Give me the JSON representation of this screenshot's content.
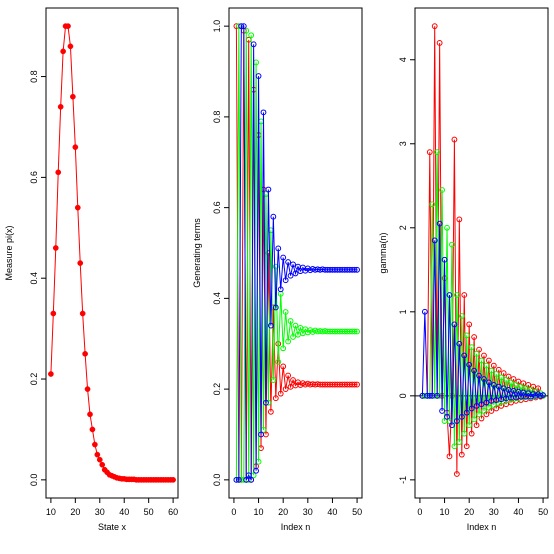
{
  "chart_data": [
    {
      "type": "line",
      "xlabel": "State x",
      "ylabel": "Measure pi(x)",
      "xlim": [
        10,
        60
      ],
      "ylim": [
        0,
        0.9
      ],
      "xticks": [
        10,
        20,
        30,
        40,
        50,
        60
      ],
      "yticks": [
        0.0,
        0.2,
        0.4,
        0.6,
        0.8
      ],
      "grid": false,
      "series": [
        {
          "color": "#ff0000",
          "x": [
            10,
            11,
            12,
            13,
            14,
            15,
            16,
            17,
            18,
            19,
            20,
            21,
            22,
            23,
            24,
            25,
            26,
            27,
            28,
            29,
            30,
            31,
            32,
            33,
            34,
            35,
            36,
            37,
            38,
            39,
            40,
            41,
            42,
            43,
            44,
            45,
            46,
            47,
            48,
            49,
            50,
            51,
            52,
            53,
            54,
            55,
            56,
            57,
            58,
            59,
            60
          ],
          "y": [
            0.21,
            0.33,
            0.46,
            0.61,
            0.74,
            0.85,
            0.9,
            0.9,
            0.86,
            0.76,
            0.66,
            0.54,
            0.43,
            0.33,
            0.25,
            0.18,
            0.13,
            0.1,
            0.07,
            0.05,
            0.04,
            0.03,
            0.02,
            0.015,
            0.01,
            0.008,
            0.006,
            0.004,
            0.003,
            0.002,
            0.002,
            0.001,
            0.001,
            0.001,
            0.001,
            0.0,
            0.0,
            0.0,
            0.0,
            0.0,
            0.0,
            0.0,
            0.0,
            0.0,
            0.0,
            0.0,
            0.0,
            0.0,
            0.0,
            0.0,
            0.0
          ]
        }
      ]
    },
    {
      "type": "line",
      "xlabel": "Index n",
      "ylabel": "Generating terms",
      "xlim": [
        0,
        50
      ],
      "ylim": [
        0,
        1
      ],
      "xticks": [
        0,
        10,
        20,
        30,
        40,
        50
      ],
      "yticks": [
        0.0,
        0.2,
        0.4,
        0.6,
        0.8,
        1.0
      ],
      "grid": false,
      "series": [
        {
          "color": "#ff0000",
          "x": [
            1,
            2,
            3,
            4,
            5,
            6,
            7,
            8,
            9,
            10,
            11,
            12,
            13,
            14,
            15,
            16,
            17,
            18,
            19,
            20,
            21,
            22,
            23,
            24,
            25,
            26,
            27,
            28,
            29,
            30,
            31,
            32,
            33,
            34,
            35,
            36,
            37,
            38,
            39,
            40,
            41,
            42,
            43,
            44,
            45,
            46,
            47,
            48,
            49,
            50
          ],
          "y": [
            1.0,
            0.0,
            0.0,
            0.99,
            0.0,
            0.97,
            0.0,
            0.86,
            0.03,
            0.76,
            0.07,
            0.64,
            0.1,
            0.5,
            0.15,
            0.38,
            0.18,
            0.3,
            0.19,
            0.25,
            0.2,
            0.23,
            0.205,
            0.22,
            0.208,
            0.215,
            0.209,
            0.213,
            0.21,
            0.212,
            0.21,
            0.211,
            0.21,
            0.211,
            0.21,
            0.21,
            0.21,
            0.21,
            0.21,
            0.21,
            0.21,
            0.21,
            0.21,
            0.21,
            0.21,
            0.21,
            0.21,
            0.21,
            0.21,
            0.21
          ]
        },
        {
          "color": "#00ff00",
          "x": [
            1,
            2,
            3,
            4,
            5,
            6,
            7,
            8,
            9,
            10,
            11,
            12,
            13,
            14,
            15,
            16,
            17,
            18,
            19,
            20,
            21,
            22,
            23,
            24,
            25,
            26,
            27,
            28,
            29,
            30,
            31,
            32,
            33,
            34,
            35,
            36,
            37,
            38,
            39,
            40,
            41,
            42,
            43,
            44,
            45,
            46,
            47,
            48,
            49,
            50
          ],
          "y": [
            0.0,
            1.0,
            0.0,
            0.0,
            0.99,
            0.0,
            0.98,
            0.01,
            0.92,
            0.04,
            0.79,
            0.11,
            0.63,
            0.17,
            0.55,
            0.22,
            0.47,
            0.26,
            0.41,
            0.29,
            0.37,
            0.305,
            0.35,
            0.315,
            0.34,
            0.32,
            0.335,
            0.323,
            0.332,
            0.325,
            0.33,
            0.326,
            0.329,
            0.327,
            0.328,
            0.327,
            0.328,
            0.327,
            0.327,
            0.327,
            0.327,
            0.327,
            0.327,
            0.327,
            0.327,
            0.327,
            0.327,
            0.327,
            0.327,
            0.327
          ]
        },
        {
          "color": "#0000ff",
          "x": [
            1,
            2,
            3,
            4,
            5,
            6,
            7,
            8,
            9,
            10,
            11,
            12,
            13,
            14,
            15,
            16,
            17,
            18,
            19,
            20,
            21,
            22,
            23,
            24,
            25,
            26,
            27,
            28,
            29,
            30,
            31,
            32,
            33,
            34,
            35,
            36,
            37,
            38,
            39,
            40,
            41,
            42,
            43,
            44,
            45,
            46,
            47,
            48,
            49,
            50
          ],
          "y": [
            0.0,
            0.0,
            1.0,
            1.0,
            0.0,
            0.01,
            0.0,
            0.96,
            0.02,
            0.89,
            0.1,
            0.81,
            0.17,
            0.64,
            0.34,
            0.58,
            0.38,
            0.51,
            0.42,
            0.49,
            0.44,
            0.48,
            0.45,
            0.475,
            0.455,
            0.47,
            0.46,
            0.468,
            0.461,
            0.466,
            0.462,
            0.465,
            0.463,
            0.464,
            0.463,
            0.464,
            0.463,
            0.463,
            0.463,
            0.463,
            0.463,
            0.463,
            0.463,
            0.463,
            0.463,
            0.463,
            0.463,
            0.463,
            0.463,
            0.463
          ]
        }
      ]
    },
    {
      "type": "line",
      "xlabel": "Index n",
      "ylabel": "gamma(n)",
      "xlim": [
        0,
        50
      ],
      "ylim": [
        -1,
        4.4
      ],
      "xticks": [
        0,
        10,
        20,
        30,
        40,
        50
      ],
      "yticks": [
        -1,
        0,
        1,
        2,
        3,
        4
      ],
      "grid": false,
      "series": [
        {
          "color": "#ff0000",
          "x": [
            1,
            2,
            3,
            4,
            5,
            6,
            7,
            8,
            9,
            10,
            11,
            12,
            13,
            14,
            15,
            16,
            17,
            18,
            19,
            20,
            21,
            22,
            23,
            24,
            25,
            26,
            27,
            28,
            29,
            30,
            31,
            32,
            33,
            34,
            35,
            36,
            37,
            38,
            39,
            40,
            41,
            42,
            43,
            44,
            45,
            46,
            47,
            48,
            49,
            50
          ],
          "y": [
            0.0,
            0.0,
            0.0,
            2.9,
            0.0,
            4.4,
            0.0,
            4.2,
            0.0,
            1.4,
            -0.2,
            -0.72,
            0.0,
            3.05,
            -0.93,
            2.1,
            -0.7,
            1.2,
            -0.6,
            0.85,
            -0.45,
            0.7,
            -0.35,
            0.55,
            -0.27,
            0.48,
            -0.22,
            0.42,
            -0.18,
            0.36,
            -0.15,
            0.31,
            -0.12,
            0.27,
            -0.1,
            0.23,
            -0.08,
            0.2,
            -0.06,
            0.17,
            -0.05,
            0.15,
            -0.04,
            0.13,
            -0.03,
            0.11,
            -0.02,
            0.09,
            -0.01,
            0.0
          ]
        },
        {
          "color": "#00ff00",
          "x": [
            1,
            2,
            3,
            4,
            5,
            6,
            7,
            8,
            9,
            10,
            11,
            12,
            13,
            14,
            15,
            16,
            17,
            18,
            19,
            20,
            21,
            22,
            23,
            24,
            25,
            26,
            27,
            28,
            29,
            30,
            31,
            32,
            33,
            34,
            35,
            36,
            37,
            38,
            39,
            40,
            41,
            42,
            43,
            44,
            45,
            46,
            47,
            48,
            49,
            50
          ],
          "y": [
            0.0,
            0.0,
            0.0,
            0.0,
            2.28,
            0.0,
            2.9,
            0.0,
            2.45,
            -0.3,
            2.0,
            -0.3,
            1.8,
            -0.6,
            1.2,
            -0.55,
            0.95,
            -0.45,
            0.72,
            -0.35,
            0.58,
            -0.28,
            0.5,
            -0.22,
            0.42,
            -0.18,
            0.36,
            -0.14,
            0.3,
            -0.11,
            0.26,
            -0.09,
            0.22,
            -0.07,
            0.19,
            -0.05,
            0.16,
            -0.04,
            0.13,
            -0.03,
            0.11,
            -0.02,
            0.09,
            -0.01,
            0.07,
            -0.01,
            0.05,
            0.0,
            0.03,
            0.0
          ]
        },
        {
          "color": "#0000ff",
          "x": [
            1,
            2,
            3,
            4,
            5,
            6,
            7,
            8,
            9,
            10,
            11,
            12,
            13,
            14,
            15,
            16,
            17,
            18,
            19,
            20,
            21,
            22,
            23,
            24,
            25,
            26,
            27,
            28,
            29,
            30,
            31,
            32,
            33,
            34,
            35,
            36,
            37,
            38,
            39,
            40,
            41,
            42,
            43,
            44,
            45,
            46,
            47,
            48,
            49,
            50
          ],
          "y": [
            0.0,
            1.0,
            0.0,
            0.0,
            0.0,
            1.85,
            0.0,
            2.05,
            -0.18,
            1.62,
            -0.25,
            1.2,
            -0.35,
            0.85,
            -0.3,
            0.62,
            -0.25,
            0.48,
            -0.2,
            0.37,
            -0.15,
            0.3,
            -0.12,
            0.24,
            -0.1,
            0.2,
            -0.08,
            0.16,
            -0.06,
            0.13,
            -0.05,
            0.11,
            -0.04,
            0.09,
            -0.03,
            0.07,
            -0.02,
            0.06,
            -0.02,
            0.05,
            -0.01,
            0.04,
            -0.01,
            0.03,
            -0.01,
            0.02,
            0.0,
            0.02,
            0.0,
            0.01
          ]
        }
      ]
    }
  ]
}
